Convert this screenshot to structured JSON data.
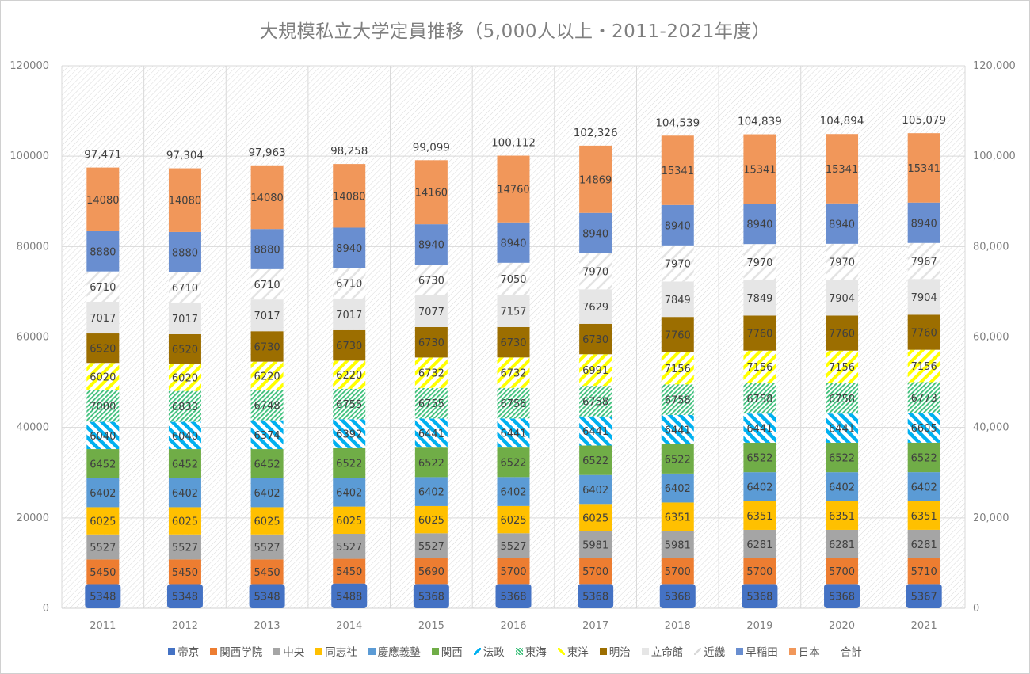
{
  "chart_data": {
    "type": "bar",
    "stacked": true,
    "title": "大規模私立大学定員推移（5,000人以上・2011-2021年度）",
    "xlabel": "",
    "ylabel": "",
    "ylim": [
      0,
      120000
    ],
    "yticks_left": [
      "0",
      "20000",
      "40000",
      "60000",
      "80000",
      "100000",
      "120000"
    ],
    "yticks_right": [
      "0",
      "20,000",
      "40,000",
      "60,000",
      "80,000",
      "100,000",
      "120,000"
    ],
    "grid": true,
    "legend_position": "bottom",
    "categories": [
      "2011",
      "2012",
      "2013",
      "2014",
      "2015",
      "2016",
      "2017",
      "2018",
      "2019",
      "2020",
      "2021"
    ],
    "series": [
      {
        "name": "帝京",
        "color": "#4472c4",
        "fill": "solid",
        "values": [
          5348,
          5348,
          5348,
          5488,
          5368,
          5368,
          5368,
          5368,
          5368,
          5368,
          5367
        ]
      },
      {
        "name": "関西学院",
        "color": "#ed7d31",
        "fill": "solid",
        "values": [
          5450,
          5450,
          5450,
          5450,
          5690,
          5700,
          5700,
          5700,
          5700,
          5700,
          5710
        ]
      },
      {
        "name": "中央",
        "color": "#a5a5a5",
        "fill": "solid",
        "values": [
          5527,
          5527,
          5527,
          5527,
          5527,
          5527,
          5981,
          5981,
          6281,
          6281,
          6281
        ]
      },
      {
        "name": "同志社",
        "color": "#ffc000",
        "fill": "solid",
        "values": [
          6025,
          6025,
          6025,
          6025,
          6025,
          6025,
          6025,
          6351,
          6351,
          6351,
          6351
        ]
      },
      {
        "name": "慶應義塾",
        "color": "#5b9bd5",
        "fill": "solid",
        "values": [
          6402,
          6402,
          6402,
          6402,
          6402,
          6402,
          6402,
          6402,
          6402,
          6402,
          6402
        ]
      },
      {
        "name": "関西",
        "color": "#70ad47",
        "fill": "solid",
        "values": [
          6452,
          6452,
          6452,
          6522,
          6522,
          6522,
          6522,
          6522,
          6522,
          6522,
          6522
        ]
      },
      {
        "name": "法政",
        "color": "#00b0f0",
        "fill": "stripe-down",
        "values": [
          6040,
          6040,
          6374,
          6392,
          6441,
          6441,
          6441,
          6441,
          6441,
          6441,
          6605
        ]
      },
      {
        "name": "東海",
        "color": "#3dbf7a",
        "fill": "stripe-fine",
        "values": [
          7000,
          6833,
          6748,
          6755,
          6755,
          6758,
          6758,
          6758,
          6758,
          6758,
          6773
        ]
      },
      {
        "name": "東洋",
        "color": "#ffff00",
        "fill": "stripe-up",
        "values": [
          6020,
          6020,
          6220,
          6220,
          6732,
          6732,
          6991,
          7156,
          7156,
          7156,
          7156
        ]
      },
      {
        "name": "明治",
        "color": "#9c6e00",
        "fill": "solid",
        "values": [
          6520,
          6520,
          6730,
          6730,
          6730,
          6730,
          6730,
          7760,
          7760,
          7760,
          7760
        ]
      },
      {
        "name": "立命館",
        "color": "#e6e6e6",
        "fill": "solid",
        "values": [
          7017,
          7017,
          7017,
          7017,
          7077,
          7157,
          7629,
          7849,
          7849,
          7904,
          7904
        ]
      },
      {
        "name": "近畿",
        "color": "#ffffff",
        "fill": "stripe-white",
        "values": [
          6710,
          6710,
          6710,
          6710,
          6730,
          7050,
          7970,
          7970,
          7970,
          7970,
          7967
        ]
      },
      {
        "name": "早稲田",
        "color": "#698ed0",
        "fill": "solid",
        "values": [
          8880,
          8880,
          8880,
          8940,
          8940,
          8940,
          8940,
          8940,
          8940,
          8940,
          8940
        ]
      },
      {
        "name": "日本",
        "color": "#f1975a",
        "fill": "solid",
        "values": [
          14080,
          14080,
          14080,
          14080,
          14160,
          14760,
          14869,
          15341,
          15341,
          15341,
          15341
        ]
      }
    ],
    "totals": {
      "name": "合計",
      "values": [
        97471,
        97304,
        97963,
        98258,
        99099,
        100112,
        102326,
        104539,
        104839,
        104894,
        105079
      ],
      "labels": [
        "97,471",
        "97,304",
        "97,963",
        "98,258",
        "99,099",
        "100,112",
        "102,326",
        "104,539",
        "104,839",
        "104,894",
        "105,079"
      ]
    }
  }
}
